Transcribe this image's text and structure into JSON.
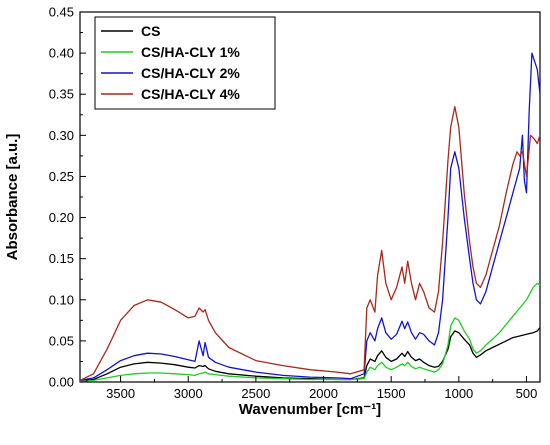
{
  "chart_data": {
    "type": "line",
    "title": "",
    "xlabel": "Wavenumber [cm⁻¹]",
    "ylabel": "Absorbance [a.u.]",
    "xlim": [
      3800,
      400
    ],
    "ylim": [
      0,
      0.45
    ],
    "x_reversed": true,
    "x_ticks": [
      3500,
      3000,
      2500,
      2000,
      1500,
      1000,
      500
    ],
    "x_tick_labels": [
      "3500",
      "3000",
      "2500",
      "2000",
      "1500",
      "1000",
      "500"
    ],
    "y_ticks": [
      0,
      0.05,
      0.1,
      0.15,
      0.2,
      0.25,
      0.3,
      0.35,
      0.4,
      0.45
    ],
    "y_tick_labels": [
      "0.00",
      "0.05",
      "0.10",
      "0.15",
      "0.20",
      "0.25",
      "0.30",
      "0.35",
      "0.40",
      "0.45"
    ],
    "grid": false,
    "legend_position": "top-left",
    "series": [
      {
        "name": "CS",
        "color": "#000000",
        "x": [
          3800,
          3700,
          3600,
          3500,
          3400,
          3300,
          3200,
          3100,
          3000,
          2950,
          2920,
          2890,
          2875,
          2850,
          2800,
          2700,
          2500,
          2300,
          2100,
          1900,
          1800,
          1700,
          1680,
          1655,
          1620,
          1600,
          1570,
          1540,
          1500,
          1460,
          1420,
          1400,
          1378,
          1350,
          1320,
          1290,
          1260,
          1220,
          1180,
          1150,
          1120,
          1080,
          1060,
          1030,
          1000,
          960,
          920,
          895,
          870,
          840,
          800,
          750,
          700,
          650,
          600,
          550,
          500,
          450,
          420,
          400
        ],
        "y": [
          0.002,
          0.003,
          0.01,
          0.018,
          0.022,
          0.024,
          0.023,
          0.021,
          0.018,
          0.017,
          0.02,
          0.019,
          0.02,
          0.016,
          0.013,
          0.01,
          0.007,
          0.005,
          0.004,
          0.003,
          0.003,
          0.005,
          0.02,
          0.028,
          0.025,
          0.032,
          0.038,
          0.03,
          0.025,
          0.028,
          0.035,
          0.031,
          0.037,
          0.03,
          0.026,
          0.028,
          0.024,
          0.02,
          0.018,
          0.019,
          0.025,
          0.04,
          0.055,
          0.062,
          0.06,
          0.052,
          0.045,
          0.035,
          0.03,
          0.033,
          0.038,
          0.042,
          0.046,
          0.05,
          0.054,
          0.056,
          0.058,
          0.06,
          0.062,
          0.066
        ]
      },
      {
        "name": "CS/HA-CLY 1%",
        "color": "#22cc22",
        "x": [
          3800,
          3700,
          3600,
          3500,
          3400,
          3300,
          3200,
          3100,
          3000,
          2950,
          2920,
          2890,
          2875,
          2850,
          2800,
          2700,
          2500,
          2300,
          2100,
          1900,
          1800,
          1700,
          1680,
          1655,
          1620,
          1600,
          1570,
          1540,
          1500,
          1460,
          1420,
          1400,
          1378,
          1350,
          1320,
          1290,
          1260,
          1220,
          1180,
          1150,
          1120,
          1080,
          1060,
          1030,
          1000,
          960,
          920,
          895,
          870,
          840,
          800,
          750,
          700,
          650,
          600,
          550,
          500,
          450,
          420,
          400
        ],
        "y": [
          0.001,
          0.002,
          0.005,
          0.008,
          0.01,
          0.011,
          0.011,
          0.01,
          0.009,
          0.008,
          0.01,
          0.011,
          0.012,
          0.01,
          0.009,
          0.007,
          0.005,
          0.004,
          0.003,
          0.003,
          0.003,
          0.004,
          0.012,
          0.018,
          0.015,
          0.02,
          0.024,
          0.018,
          0.015,
          0.018,
          0.022,
          0.02,
          0.024,
          0.019,
          0.016,
          0.018,
          0.016,
          0.014,
          0.012,
          0.015,
          0.022,
          0.045,
          0.068,
          0.078,
          0.075,
          0.062,
          0.052,
          0.04,
          0.035,
          0.038,
          0.045,
          0.052,
          0.06,
          0.07,
          0.08,
          0.09,
          0.1,
          0.115,
          0.12,
          0.118
        ]
      },
      {
        "name": "CS/HA-CLY 2%",
        "color": "#1414cc",
        "x": [
          3800,
          3700,
          3600,
          3500,
          3400,
          3300,
          3200,
          3100,
          3000,
          2950,
          2920,
          2890,
          2875,
          2850,
          2800,
          2700,
          2500,
          2300,
          2100,
          1900,
          1800,
          1700,
          1680,
          1655,
          1620,
          1600,
          1570,
          1540,
          1500,
          1460,
          1420,
          1400,
          1378,
          1350,
          1320,
          1290,
          1260,
          1220,
          1180,
          1150,
          1120,
          1080,
          1060,
          1030,
          1000,
          960,
          920,
          895,
          870,
          840,
          800,
          750,
          700,
          650,
          600,
          550,
          530,
          515,
          500,
          480,
          460,
          440,
          420,
          400
        ],
        "y": [
          0.002,
          0.005,
          0.015,
          0.026,
          0.032,
          0.035,
          0.034,
          0.031,
          0.027,
          0.025,
          0.05,
          0.032,
          0.048,
          0.03,
          0.024,
          0.018,
          0.012,
          0.008,
          0.006,
          0.005,
          0.004,
          0.01,
          0.05,
          0.06,
          0.05,
          0.065,
          0.078,
          0.06,
          0.052,
          0.058,
          0.074,
          0.065,
          0.073,
          0.06,
          0.052,
          0.06,
          0.058,
          0.05,
          0.045,
          0.06,
          0.1,
          0.2,
          0.26,
          0.28,
          0.26,
          0.2,
          0.15,
          0.12,
          0.1,
          0.095,
          0.11,
          0.14,
          0.17,
          0.2,
          0.23,
          0.26,
          0.3,
          0.245,
          0.23,
          0.33,
          0.4,
          0.39,
          0.38,
          0.35
        ]
      },
      {
        "name": "CS/HA-CLY 4%",
        "color": "#a52a1a",
        "x": [
          3800,
          3700,
          3600,
          3500,
          3400,
          3300,
          3200,
          3100,
          3000,
          2950,
          2920,
          2890,
          2875,
          2850,
          2800,
          2700,
          2500,
          2300,
          2100,
          1900,
          1800,
          1700,
          1680,
          1655,
          1620,
          1600,
          1570,
          1540,
          1500,
          1460,
          1420,
          1400,
          1378,
          1350,
          1320,
          1290,
          1260,
          1220,
          1180,
          1150,
          1120,
          1080,
          1060,
          1030,
          1000,
          960,
          920,
          895,
          870,
          840,
          800,
          750,
          700,
          650,
          600,
          570,
          550,
          530,
          500,
          470,
          440,
          420,
          400
        ],
        "y": [
          0.002,
          0.01,
          0.04,
          0.075,
          0.093,
          0.1,
          0.097,
          0.088,
          0.078,
          0.08,
          0.09,
          0.085,
          0.088,
          0.075,
          0.06,
          0.042,
          0.026,
          0.02,
          0.015,
          0.012,
          0.01,
          0.015,
          0.09,
          0.1,
          0.085,
          0.13,
          0.16,
          0.12,
          0.1,
          0.115,
          0.14,
          0.12,
          0.147,
          0.12,
          0.1,
          0.12,
          0.11,
          0.09,
          0.085,
          0.11,
          0.17,
          0.27,
          0.31,
          0.335,
          0.31,
          0.23,
          0.17,
          0.14,
          0.12,
          0.115,
          0.13,
          0.16,
          0.19,
          0.23,
          0.265,
          0.28,
          0.275,
          0.28,
          0.25,
          0.3,
          0.295,
          0.29,
          0.3
        ]
      }
    ]
  }
}
